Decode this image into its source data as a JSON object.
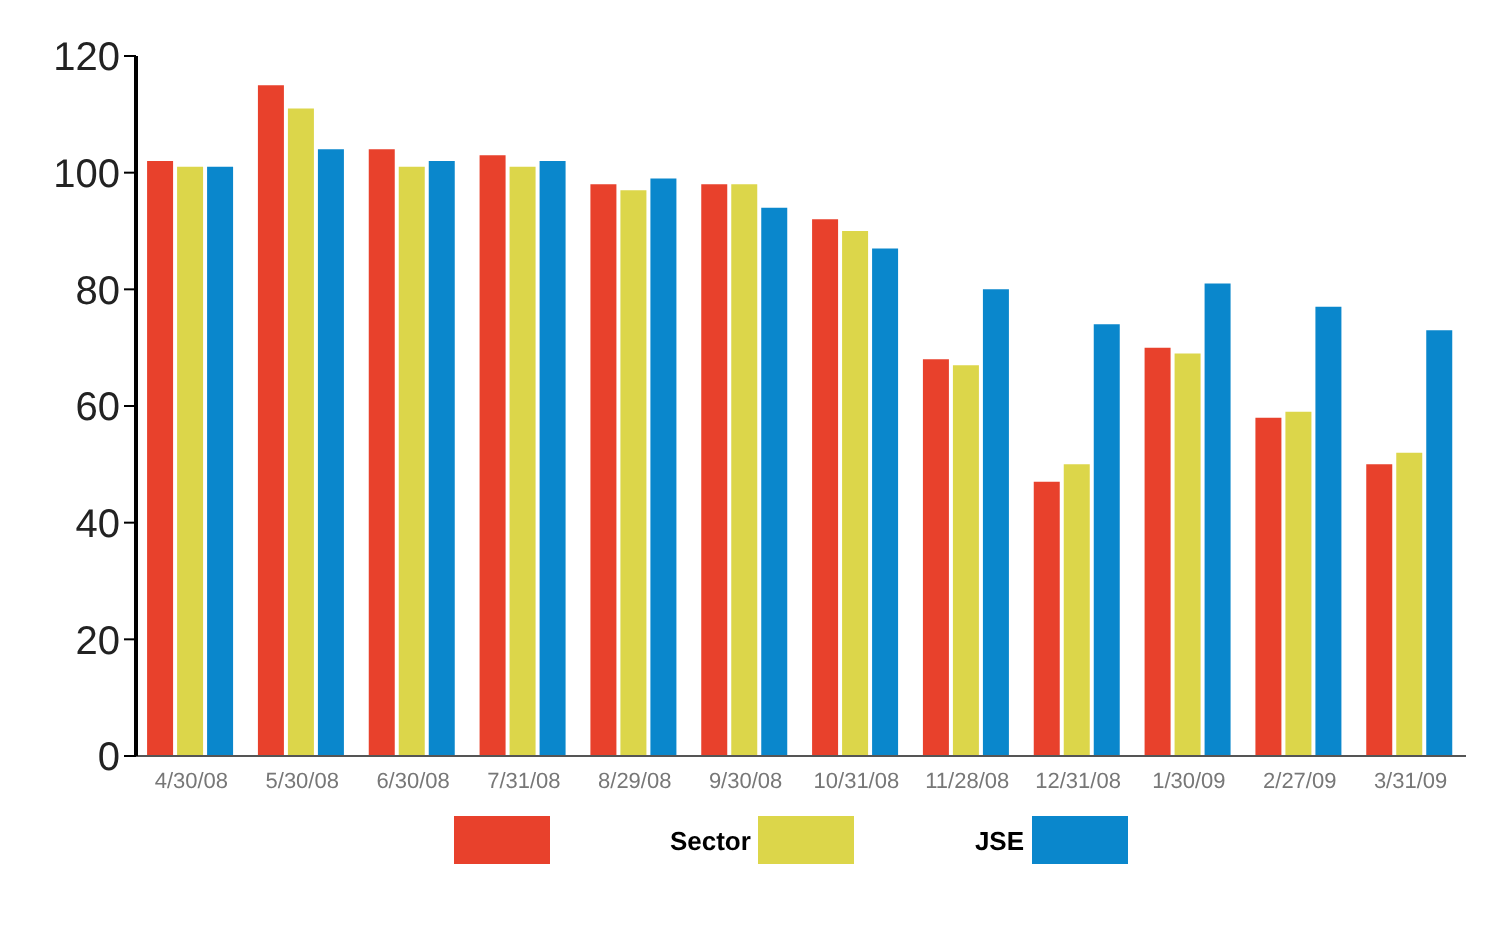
{
  "chart_data": {
    "type": "bar",
    "categories": [
      "4/30/08",
      "5/30/08",
      "6/30/08",
      "7/31/08",
      "8/29/08",
      "9/30/08",
      "10/31/08",
      "11/28/08",
      "12/31/08",
      "1/30/09",
      "2/27/09",
      "3/31/09"
    ],
    "series": [
      {
        "color": "#e8412c",
        "values": [
          102,
          115,
          104,
          103,
          98,
          98,
          92,
          68,
          47,
          70,
          58,
          50
        ]
      },
      {
        "name": "Sector",
        "color": "#dcd64a",
        "values": [
          101,
          111,
          101,
          101,
          97,
          98,
          90,
          67,
          50,
          69,
          59,
          52
        ]
      },
      {
        "name": "JSE",
        "color": "#0a87cc",
        "values": [
          101,
          104,
          102,
          102,
          99,
          94,
          87,
          80,
          74,
          81,
          77,
          73
        ]
      }
    ],
    "ylim": [
      0,
      120
    ],
    "yticks": [
      0,
      20,
      40,
      60,
      80,
      100,
      120
    ],
    "grid": false,
    "legend": "bottom"
  }
}
